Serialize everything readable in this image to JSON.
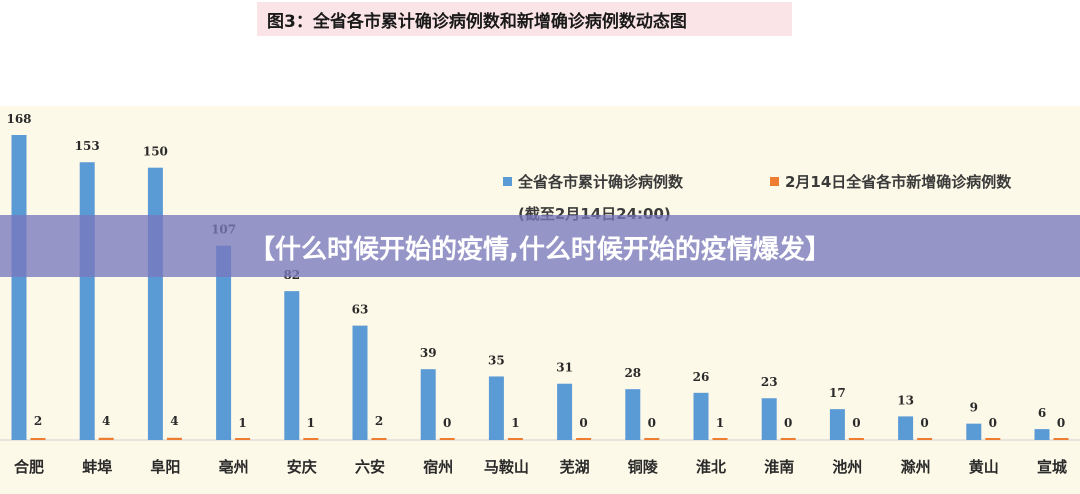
{
  "figure_title": "图3：全省各市累计确诊病例数和新增确诊病例数动态图",
  "banner_text": "【什么时候开始的疫情,什么时候开始的疫情爆发】",
  "colors": {
    "cumulative": "#5b9bd5",
    "new": "#ed7d31",
    "panel_bg": "#fdf9e8",
    "title_bg": "#fbe4e7"
  },
  "chart_data": {
    "type": "bar",
    "title": "图3：全省各市累计确诊病例数和新增确诊病例数动态图",
    "categories": [
      "合肥",
      "蚌埠",
      "阜阳",
      "亳州",
      "安庆",
      "六安",
      "宿州",
      "马鞍山",
      "芜湖",
      "铜陵",
      "淮北",
      "淮南",
      "池州",
      "滁州",
      "黄山",
      "宣城"
    ],
    "series": [
      {
        "name": "全省各市累计确诊病例数",
        "values": [
          168,
          153,
          150,
          107,
          82,
          63,
          39,
          35,
          31,
          28,
          26,
          23,
          17,
          13,
          9,
          6
        ]
      },
      {
        "name": "2月14日全省各市新增确诊病例数",
        "values": [
          2,
          4,
          4,
          1,
          1,
          2,
          0,
          1,
          0,
          0,
          1,
          0,
          0,
          0,
          0,
          0
        ]
      }
    ],
    "legend_note": "(截至2月14日24:00)",
    "legend_position": "top-right",
    "ylim": [
      0,
      168
    ],
    "grid": false
  }
}
